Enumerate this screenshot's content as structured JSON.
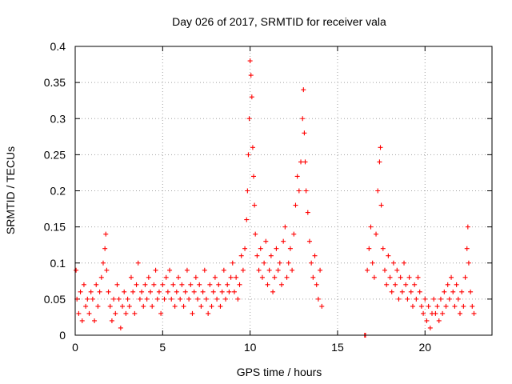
{
  "chart_data": {
    "type": "scatter",
    "title": "Day 026 of 2017, SRMTID for receiver vala",
    "xlabel": "GPS time / hours",
    "ylabel": "SRMTID / TECUs",
    "xlim": [
      0,
      23.83
    ],
    "ylim": [
      0,
      0.4
    ],
    "xticks": [
      0,
      5,
      10,
      15,
      20
    ],
    "yticks": [
      0,
      0.05,
      0.1,
      0.15,
      0.2,
      0.25,
      0.3,
      0.35,
      0.4
    ],
    "xtick_labels": [
      "0",
      "5",
      "10",
      "15",
      "20"
    ],
    "ytick_labels": [
      "0",
      "0.05",
      "0.1",
      "0.15",
      "0.2",
      "0.25",
      "0.3",
      "0.35",
      "0.4"
    ],
    "grid": true,
    "marker": "+",
    "color": "#ff0000",
    "series": [
      {
        "name": "SRMTID",
        "points": [
          [
            0.05,
            0.09
          ],
          [
            0.1,
            0.05
          ],
          [
            0.2,
            0.03
          ],
          [
            0.3,
            0.06
          ],
          [
            0.4,
            0.02
          ],
          [
            0.5,
            0.07
          ],
          [
            0.6,
            0.04
          ],
          [
            0.7,
            0.05
          ],
          [
            0.8,
            0.03
          ],
          [
            0.9,
            0.06
          ],
          [
            1.0,
            0.05
          ],
          [
            1.1,
            0.02
          ],
          [
            1.2,
            0.07
          ],
          [
            1.3,
            0.04
          ],
          [
            1.4,
            0.06
          ],
          [
            1.5,
            0.08
          ],
          [
            1.6,
            0.1
          ],
          [
            1.7,
            0.12
          ],
          [
            1.75,
            0.14
          ],
          [
            1.8,
            0.09
          ],
          [
            1.9,
            0.06
          ],
          [
            2.0,
            0.04
          ],
          [
            2.1,
            0.02
          ],
          [
            2.2,
            0.05
          ],
          [
            2.3,
            0.03
          ],
          [
            2.4,
            0.07
          ],
          [
            2.5,
            0.05
          ],
          [
            2.6,
            0.01
          ],
          [
            2.7,
            0.04
          ],
          [
            2.8,
            0.06
          ],
          [
            2.9,
            0.03
          ],
          [
            3.0,
            0.05
          ],
          [
            3.1,
            0.04
          ],
          [
            3.2,
            0.08
          ],
          [
            3.3,
            0.06
          ],
          [
            3.4,
            0.03
          ],
          [
            3.5,
            0.07
          ],
          [
            3.6,
            0.1
          ],
          [
            3.7,
            0.05
          ],
          [
            3.8,
            0.06
          ],
          [
            3.9,
            0.04
          ],
          [
            4.0,
            0.07
          ],
          [
            4.1,
            0.05
          ],
          [
            4.2,
            0.08
          ],
          [
            4.3,
            0.06
          ],
          [
            4.4,
            0.04
          ],
          [
            4.5,
            0.07
          ],
          [
            4.6,
            0.09
          ],
          [
            4.7,
            0.05
          ],
          [
            4.8,
            0.06
          ],
          [
            4.9,
            0.03
          ],
          [
            5.0,
            0.07
          ],
          [
            5.1,
            0.05
          ],
          [
            5.2,
            0.08
          ],
          [
            5.3,
            0.06
          ],
          [
            5.4,
            0.09
          ],
          [
            5.5,
            0.05
          ],
          [
            5.6,
            0.07
          ],
          [
            5.7,
            0.04
          ],
          [
            5.8,
            0.06
          ],
          [
            5.9,
            0.08
          ],
          [
            6.0,
            0.05
          ],
          [
            6.1,
            0.07
          ],
          [
            6.2,
            0.04
          ],
          [
            6.3,
            0.06
          ],
          [
            6.4,
            0.09
          ],
          [
            6.5,
            0.05
          ],
          [
            6.6,
            0.07
          ],
          [
            6.7,
            0.03
          ],
          [
            6.8,
            0.06
          ],
          [
            6.9,
            0.08
          ],
          [
            7.0,
            0.05
          ],
          [
            7.1,
            0.07
          ],
          [
            7.2,
            0.04
          ],
          [
            7.3,
            0.06
          ],
          [
            7.4,
            0.09
          ],
          [
            7.5,
            0.05
          ],
          [
            7.6,
            0.03
          ],
          [
            7.7,
            0.07
          ],
          [
            7.8,
            0.04
          ],
          [
            7.9,
            0.06
          ],
          [
            8.0,
            0.08
          ],
          [
            8.1,
            0.05
          ],
          [
            8.2,
            0.07
          ],
          [
            8.3,
            0.04
          ],
          [
            8.4,
            0.06
          ],
          [
            8.5,
            0.09
          ],
          [
            8.6,
            0.05
          ],
          [
            8.7,
            0.07
          ],
          [
            8.8,
            0.06
          ],
          [
            8.9,
            0.08
          ],
          [
            9.0,
            0.1
          ],
          [
            9.1,
            0.06
          ],
          [
            9.2,
            0.08
          ],
          [
            9.3,
            0.05
          ],
          [
            9.4,
            0.07
          ],
          [
            9.5,
            0.11
          ],
          [
            9.6,
            0.09
          ],
          [
            9.7,
            0.12
          ],
          [
            9.8,
            0.16
          ],
          [
            9.85,
            0.2
          ],
          [
            9.9,
            0.25
          ],
          [
            9.95,
            0.3
          ],
          [
            10.0,
            0.38
          ],
          [
            10.05,
            0.36
          ],
          [
            10.1,
            0.33
          ],
          [
            10.15,
            0.26
          ],
          [
            10.2,
            0.22
          ],
          [
            10.25,
            0.18
          ],
          [
            10.3,
            0.14
          ],
          [
            10.4,
            0.11
          ],
          [
            10.5,
            0.09
          ],
          [
            10.6,
            0.12
          ],
          [
            10.7,
            0.08
          ],
          [
            10.8,
            0.1
          ],
          [
            10.9,
            0.13
          ],
          [
            11.0,
            0.07
          ],
          [
            11.1,
            0.09
          ],
          [
            11.2,
            0.11
          ],
          [
            11.3,
            0.06
          ],
          [
            11.4,
            0.08
          ],
          [
            11.5,
            0.12
          ],
          [
            11.6,
            0.09
          ],
          [
            11.7,
            0.1
          ],
          [
            11.8,
            0.07
          ],
          [
            11.9,
            0.13
          ],
          [
            12.0,
            0.15
          ],
          [
            12.1,
            0.08
          ],
          [
            12.2,
            0.1
          ],
          [
            12.3,
            0.12
          ],
          [
            12.4,
            0.09
          ],
          [
            12.5,
            0.14
          ],
          [
            12.6,
            0.18
          ],
          [
            12.7,
            0.22
          ],
          [
            12.8,
            0.2
          ],
          [
            12.9,
            0.24
          ],
          [
            13.0,
            0.3
          ],
          [
            13.05,
            0.34
          ],
          [
            13.1,
            0.28
          ],
          [
            13.15,
            0.24
          ],
          [
            13.2,
            0.2
          ],
          [
            13.3,
            0.17
          ],
          [
            13.4,
            0.13
          ],
          [
            13.5,
            0.1
          ],
          [
            13.6,
            0.08
          ],
          [
            13.7,
            0.11
          ],
          [
            13.8,
            0.07
          ],
          [
            13.9,
            0.05
          ],
          [
            14.0,
            0.09
          ],
          [
            14.1,
            0.04
          ],
          [
            16.55,
            0.0
          ],
          [
            16.6,
            0.0
          ],
          [
            16.7,
            0.09
          ],
          [
            16.8,
            0.12
          ],
          [
            16.9,
            0.15
          ],
          [
            17.0,
            0.1
          ],
          [
            17.1,
            0.08
          ],
          [
            17.2,
            0.14
          ],
          [
            17.3,
            0.2
          ],
          [
            17.4,
            0.24
          ],
          [
            17.45,
            0.26
          ],
          [
            17.5,
            0.18
          ],
          [
            17.6,
            0.12
          ],
          [
            17.7,
            0.09
          ],
          [
            17.8,
            0.07
          ],
          [
            17.9,
            0.11
          ],
          [
            18.0,
            0.08
          ],
          [
            18.1,
            0.06
          ],
          [
            18.2,
            0.1
          ],
          [
            18.3,
            0.07
          ],
          [
            18.4,
            0.09
          ],
          [
            18.5,
            0.05
          ],
          [
            18.6,
            0.08
          ],
          [
            18.7,
            0.06
          ],
          [
            18.8,
            0.1
          ],
          [
            18.9,
            0.07
          ],
          [
            19.0,
            0.05
          ],
          [
            19.1,
            0.08
          ],
          [
            19.2,
            0.06
          ],
          [
            19.3,
            0.04
          ],
          [
            19.4,
            0.07
          ],
          [
            19.5,
            0.05
          ],
          [
            19.6,
            0.08
          ],
          [
            19.7,
            0.06
          ],
          [
            19.8,
            0.04
          ],
          [
            19.9,
            0.03
          ],
          [
            20.0,
            0.05
          ],
          [
            20.1,
            0.02
          ],
          [
            20.2,
            0.04
          ],
          [
            20.3,
            0.01
          ],
          [
            20.4,
            0.03
          ],
          [
            20.5,
            0.05
          ],
          [
            20.6,
            0.03
          ],
          [
            20.7,
            0.04
          ],
          [
            20.8,
            0.02
          ],
          [
            20.9,
            0.05
          ],
          [
            21.0,
            0.03
          ],
          [
            21.1,
            0.06
          ],
          [
            21.2,
            0.04
          ],
          [
            21.3,
            0.07
          ],
          [
            21.4,
            0.05
          ],
          [
            21.5,
            0.08
          ],
          [
            21.6,
            0.06
          ],
          [
            21.7,
            0.04
          ],
          [
            21.8,
            0.07
          ],
          [
            21.9,
            0.05
          ],
          [
            22.0,
            0.03
          ],
          [
            22.1,
            0.06
          ],
          [
            22.2,
            0.04
          ],
          [
            22.3,
            0.08
          ],
          [
            22.4,
            0.12
          ],
          [
            22.45,
            0.15
          ],
          [
            22.5,
            0.1
          ],
          [
            22.6,
            0.06
          ],
          [
            22.7,
            0.04
          ],
          [
            22.8,
            0.03
          ]
        ]
      }
    ]
  }
}
